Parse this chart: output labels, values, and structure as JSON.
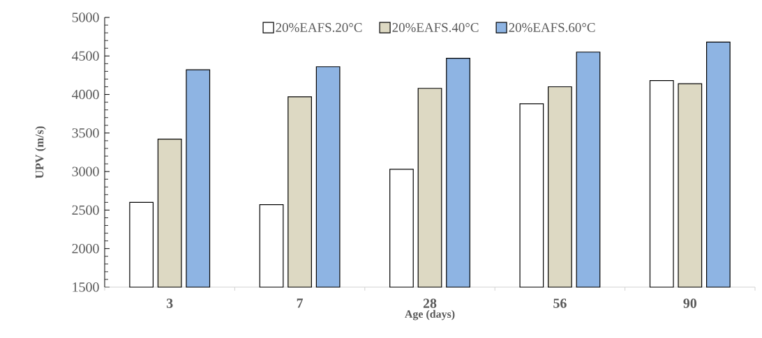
{
  "chart_data": {
    "type": "bar",
    "xlabel": "Age (days)",
    "ylabel": "UPV (m/s)",
    "categories": [
      "3",
      "7",
      "28",
      "56",
      "90"
    ],
    "series": [
      {
        "name": "20%EAFS.20°C",
        "color": "#ffffff",
        "values": [
          2600,
          2570,
          3030,
          3880,
          4180
        ]
      },
      {
        "name": "20%EAFS.40°C",
        "color": "#ddd9c3",
        "values": [
          3420,
          3970,
          4080,
          4100,
          4140
        ]
      },
      {
        "name": "20%EAFS.60°C",
        "color": "#8eb4e3",
        "values": [
          4320,
          4360,
          4470,
          4550,
          4680
        ]
      }
    ],
    "ylim": [
      1500,
      5000
    ],
    "yticks": [
      1500,
      2000,
      2500,
      3000,
      3500,
      4000,
      4500,
      5000
    ],
    "grid": false,
    "legend": "top"
  }
}
